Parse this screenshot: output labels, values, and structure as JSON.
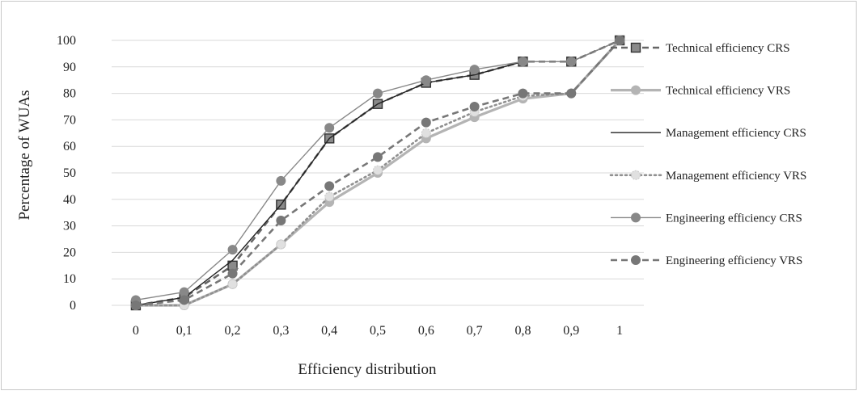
{
  "chart_data": {
    "type": "line",
    "title": "",
    "xlabel": "Efficiency distribution",
    "ylabel": "Percentage of WUAs",
    "categories": [
      "0",
      "0,1",
      "0,2",
      "0,3",
      "0,4",
      "0,5",
      "0,6",
      "0,7",
      "0,8",
      "0,9",
      "1"
    ],
    "yticks": [
      "0",
      "10",
      "20",
      "30",
      "40",
      "50",
      "60",
      "70",
      "80",
      "90",
      "100"
    ],
    "ylim": [
      0,
      100
    ],
    "grid": true,
    "legend_position": "right",
    "series": [
      {
        "name": "Technical efficiency  CRS",
        "values": [
          0,
          3,
          15,
          38,
          63,
          76,
          84,
          87,
          92,
          92,
          100
        ],
        "color": "#666666",
        "dash": "8,5",
        "width": 2.6,
        "marker": "square"
      },
      {
        "name": "Technical efficiency  VRS",
        "values": [
          0,
          0,
          8,
          23,
          39,
          50,
          63,
          71,
          78,
          80,
          100
        ],
        "color": "#b4b4b4",
        "dash": "",
        "width": 3.2,
        "marker": "circle"
      },
      {
        "name": "Management efficiency CRS",
        "values": [
          0,
          3,
          17,
          38,
          63,
          76,
          84,
          87,
          92,
          92,
          100
        ],
        "color": "#222222",
        "dash": "",
        "width": 1.4,
        "marker": "none"
      },
      {
        "name": "Management efficiency VRS",
        "values": [
          0,
          0,
          8,
          23,
          41,
          51,
          65,
          73,
          79,
          80,
          100
        ],
        "color": "#909090",
        "dash": "2,4",
        "width": 2.6,
        "marker": "star"
      },
      {
        "name": "Engineering  efficiency CRS",
        "values": [
          2,
          5,
          21,
          47,
          67,
          80,
          85,
          89,
          92,
          92,
          100
        ],
        "color": "#888888",
        "dash": "",
        "width": 1.4,
        "marker": "circle"
      },
      {
        "name": "Engineering  efficiency VRS",
        "values": [
          0,
          2,
          12,
          32,
          45,
          56,
          69,
          75,
          80,
          80,
          100
        ],
        "color": "#777777",
        "dash": "8,5",
        "width": 2.6,
        "marker": "circle"
      }
    ]
  }
}
